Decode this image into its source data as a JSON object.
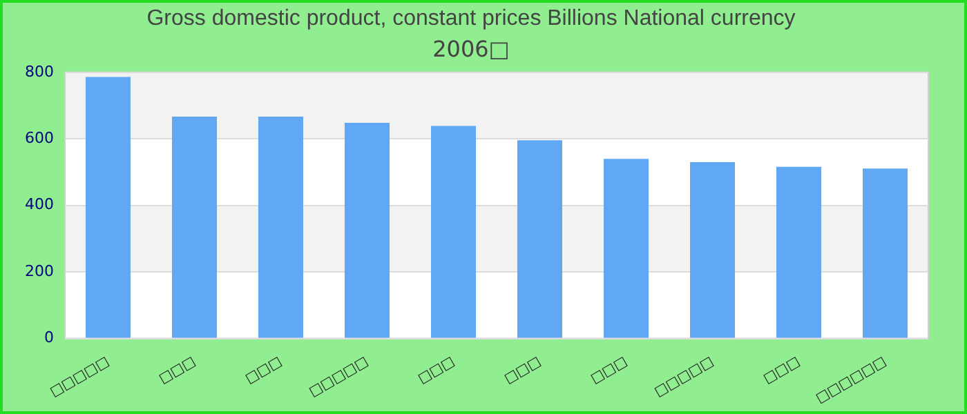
{
  "chart_data": {
    "type": "bar",
    "title": "Gross domestic product, constant prices Billions National currency",
    "subtitle": "2006□",
    "categories": [
      "□□□□□",
      "□□□",
      "□□□",
      "□□□□□",
      "□□□",
      "□□□",
      "□□□",
      "□□□□□",
      "□□□",
      "□□□□□□"
    ],
    "values": [
      786,
      667,
      667,
      648,
      639,
      596,
      540,
      530,
      516,
      511
    ],
    "color": "#60a8f4",
    "ylim": [
      0,
      800
    ],
    "yticks": [
      0,
      200,
      400,
      600,
      800
    ],
    "grid": true,
    "legend": false
  }
}
